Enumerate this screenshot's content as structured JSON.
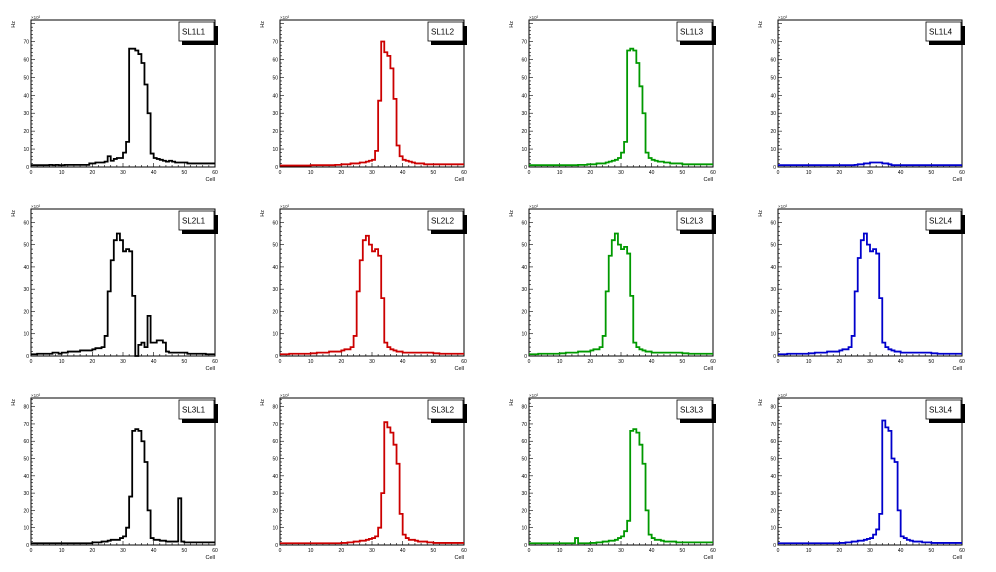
{
  "colors": {
    "SL1L1": "#000000",
    "SL1L2": "#cc0000",
    "SL1L3": "#009900",
    "SL1L4": "#0000cc"
  },
  "chart_data": [
    {
      "type": "bar",
      "title": "SL1L1",
      "xlabel": "Cell",
      "ylabel": "Hz",
      "y_multiplier": "×10³",
      "color": "#000000",
      "x_range": [
        0,
        60
      ],
      "ylim": [
        0,
        82
      ],
      "xticks": [
        0,
        10,
        20,
        30,
        40,
        50,
        60
      ],
      "yticks": [
        0,
        10,
        20,
        30,
        40,
        50,
        60,
        70
      ],
      "values": [
        1,
        1,
        1,
        1,
        1,
        1,
        1.2,
        1,
        1.2,
        1,
        1,
        1.2,
        1.2,
        1.2,
        1.2,
        1.2,
        1.2,
        1.2,
        1.2,
        2,
        2,
        2.5,
        2.5,
        2.5,
        3,
        6,
        3.5,
        4.5,
        5,
        5,
        8,
        14,
        66,
        66,
        65,
        63,
        58,
        46,
        30,
        7.5,
        5,
        4.5,
        4,
        3.5,
        3,
        3.5,
        3,
        2.5,
        2.5,
        2.5,
        2.5,
        2,
        2,
        2,
        2,
        2,
        2,
        2,
        2,
        2
      ]
    },
    {
      "type": "bar",
      "title": "SL1L2",
      "xlabel": "Cell",
      "ylabel": "Hz",
      "y_multiplier": "×10³",
      "color": "#cc0000",
      "x_range": [
        0,
        60
      ],
      "ylim": [
        0,
        82
      ],
      "xticks": [
        0,
        10,
        20,
        30,
        40,
        50,
        60
      ],
      "yticks": [
        0,
        10,
        20,
        30,
        40,
        50,
        60,
        70
      ],
      "values": [
        0.8,
        0.8,
        0.8,
        0.8,
        0.8,
        0.8,
        0.8,
        0.8,
        0.8,
        0.8,
        1,
        1,
        1,
        1,
        1,
        1,
        1,
        1,
        1.2,
        1.2,
        1.5,
        1.5,
        1.5,
        2,
        2,
        2,
        2.5,
        2.5,
        3,
        3.5,
        4,
        9,
        37,
        70,
        64,
        62,
        55,
        38,
        12,
        6,
        4,
        3.5,
        3,
        2.5,
        2,
        2,
        2,
        1.5,
        1.5,
        1.5,
        1.5,
        1.5,
        1.5,
        1.5,
        1.5,
        1.5,
        1.5,
        1.5,
        1.5,
        1.5
      ]
    },
    {
      "type": "bar",
      "title": "SL1L3",
      "xlabel": "Cell",
      "ylabel": "Hz",
      "y_multiplier": "×10³",
      "color": "#009900",
      "x_range": [
        0,
        60
      ],
      "ylim": [
        0,
        82
      ],
      "xticks": [
        0,
        10,
        20,
        30,
        40,
        50,
        60
      ],
      "yticks": [
        0,
        10,
        20,
        30,
        40,
        50,
        60,
        70
      ],
      "values": [
        1,
        1,
        1,
        1,
        1,
        1,
        1,
        1,
        1,
        1,
        1,
        1,
        1,
        1,
        1,
        1,
        1.2,
        1.2,
        1.2,
        1.5,
        1.5,
        1.5,
        2,
        2,
        2,
        2.5,
        3,
        3.5,
        4,
        5,
        8,
        14,
        65,
        66,
        65,
        58,
        45,
        30,
        8,
        5,
        4,
        3.5,
        3,
        3,
        2.5,
        2.5,
        2,
        2,
        2,
        2,
        1.5,
        1.5,
        1.5,
        1.5,
        1.5,
        1.5,
        1.5,
        1.5,
        1.5,
        1.5
      ]
    },
    {
      "type": "bar",
      "title": "SL1L4",
      "xlabel": "Cell",
      "ylabel": "Hz",
      "y_multiplier": "×10³",
      "color": "#0000cc",
      "x_range": [
        0,
        60
      ],
      "ylim": [
        0,
        82
      ],
      "xticks": [
        0,
        10,
        20,
        30,
        40,
        50,
        60
      ],
      "yticks": [
        0,
        10,
        20,
        30,
        40,
        50,
        60,
        70
      ],
      "values": [
        1,
        1,
        1,
        1,
        1,
        1,
        1,
        1,
        1,
        1,
        1,
        1,
        1,
        1,
        1,
        1,
        1,
        1,
        1,
        1,
        1,
        1,
        1,
        1,
        1,
        1.2,
        1.5,
        1.5,
        2,
        2,
        2.5,
        2.5,
        2.5,
        2.5,
        2,
        2,
        1.5,
        1,
        1,
        1,
        1,
        1,
        1,
        1,
        1,
        1,
        1,
        1,
        1,
        1,
        1,
        1,
        1,
        1,
        1,
        1,
        1,
        1,
        1,
        1
      ]
    },
    {
      "type": "bar",
      "title": "SL2L1",
      "xlabel": "Cell",
      "ylabel": "Hz",
      "y_multiplier": "×10³",
      "color": "#000000",
      "x_range": [
        0,
        60
      ],
      "ylim": [
        0,
        66
      ],
      "xticks": [
        0,
        10,
        20,
        30,
        40,
        50,
        60
      ],
      "yticks": [
        0,
        10,
        20,
        30,
        40,
        50,
        60
      ],
      "values": [
        0.8,
        0.8,
        1,
        1,
        1,
        1,
        1,
        1.5,
        1.5,
        1,
        1.5,
        1.5,
        2,
        2,
        2,
        2,
        2.5,
        2.5,
        2.5,
        2.5,
        3,
        3.5,
        3.5,
        4,
        9,
        29,
        43,
        52,
        55,
        52,
        47,
        48,
        47,
        27,
        0,
        5,
        6,
        4,
        18,
        6,
        6,
        7,
        7,
        6,
        2,
        1.5,
        1.5,
        1.5,
        1.5,
        1.5,
        1.5,
        1,
        1,
        1,
        1,
        1,
        1,
        0.8,
        0.8,
        0.8
      ]
    },
    {
      "type": "bar",
      "title": "SL2L2",
      "xlabel": "Cell",
      "ylabel": "Hz",
      "y_multiplier": "×10³",
      "color": "#cc0000",
      "x_range": [
        0,
        60
      ],
      "ylim": [
        0,
        66
      ],
      "xticks": [
        0,
        10,
        20,
        30,
        40,
        50,
        60
      ],
      "yticks": [
        0,
        10,
        20,
        30,
        40,
        50,
        60
      ],
      "values": [
        0.8,
        0.8,
        0.8,
        1,
        1,
        1,
        1,
        1,
        1,
        1,
        1.2,
        1.2,
        1.5,
        1.5,
        1.5,
        1.5,
        2,
        2,
        2,
        2,
        2.5,
        3,
        3,
        4,
        9,
        29,
        43,
        52,
        54,
        50,
        47,
        48,
        45,
        26,
        6,
        4,
        3,
        2.5,
        2,
        2,
        1.5,
        1.5,
        1.5,
        1.5,
        1.5,
        1.5,
        1.5,
        1.5,
        1.5,
        1.5,
        1.2,
        1.2,
        1,
        1,
        1,
        1,
        1,
        1,
        1,
        1
      ]
    },
    {
      "type": "bar",
      "title": "SL2L3",
      "xlabel": "Cell",
      "ylabel": "Hz",
      "y_multiplier": "×10³",
      "color": "#009900",
      "x_range": [
        0,
        60
      ],
      "ylim": [
        0,
        66
      ],
      "xticks": [
        0,
        10,
        20,
        30,
        40,
        50,
        60
      ],
      "yticks": [
        0,
        10,
        20,
        30,
        40,
        50,
        60
      ],
      "values": [
        0.8,
        0.8,
        0.8,
        1,
        1,
        1,
        1,
        1,
        1,
        1,
        1.2,
        1.2,
        1.5,
        1.5,
        1.5,
        1.5,
        2,
        2,
        2,
        2,
        2.5,
        3,
        3,
        4,
        9,
        29,
        45,
        52,
        55,
        50,
        48,
        49,
        46,
        27,
        6,
        4,
        3,
        2.5,
        2,
        2,
        1.5,
        1.5,
        1.5,
        1.5,
        1.5,
        1.5,
        1.5,
        1.5,
        1.5,
        1.5,
        1.2,
        1.2,
        1,
        1,
        1,
        1,
        1,
        1,
        1,
        1
      ]
    },
    {
      "type": "bar",
      "title": "SL2L4",
      "xlabel": "Cell",
      "ylabel": "Hz",
      "y_multiplier": "×10³",
      "color": "#0000cc",
      "x_range": [
        0,
        60
      ],
      "ylim": [
        0,
        66
      ],
      "xticks": [
        0,
        10,
        20,
        30,
        40,
        50,
        60
      ],
      "yticks": [
        0,
        10,
        20,
        30,
        40,
        50,
        60
      ],
      "values": [
        0.8,
        0.8,
        0.8,
        1,
        1,
        1,
        1,
        1,
        1,
        1,
        1.2,
        1.2,
        1.5,
        1.5,
        1.5,
        1.5,
        2,
        2,
        2,
        2,
        2.5,
        3,
        3,
        4,
        9,
        29,
        44,
        52,
        55,
        50,
        47,
        48,
        46,
        26,
        6,
        4,
        3,
        2.5,
        2,
        2,
        1.5,
        1.5,
        1.5,
        1.5,
        1.5,
        1.5,
        1.5,
        1.5,
        1.5,
        1.5,
        1.2,
        1.2,
        1,
        1,
        1,
        1,
        1,
        1,
        1,
        1
      ]
    },
    {
      "type": "bar",
      "title": "SL3L1",
      "xlabel": "Cell",
      "ylabel": "Hz",
      "y_multiplier": "×10³",
      "color": "#000000",
      "x_range": [
        0,
        60
      ],
      "ylim": [
        0,
        85
      ],
      "xticks": [
        0,
        10,
        20,
        30,
        40,
        50,
        60
      ],
      "yticks": [
        0,
        10,
        20,
        30,
        40,
        50,
        60,
        70,
        80
      ],
      "values": [
        1,
        1,
        1,
        1,
        1,
        1,
        1,
        1,
        1,
        1,
        1,
        1,
        1,
        1,
        1,
        1,
        1,
        1,
        1,
        1,
        1.5,
        1.5,
        1.5,
        2,
        2,
        2.5,
        3,
        3,
        3,
        4,
        5,
        10,
        28,
        66,
        67,
        66,
        60,
        48,
        20,
        4,
        3,
        3,
        2.5,
        2.5,
        2,
        2,
        2,
        2,
        27,
        2,
        1.5,
        1.5,
        1.5,
        1.5,
        1.5,
        1.5,
        1.5,
        1.5,
        1.5,
        1.5
      ]
    },
    {
      "type": "bar",
      "title": "SL3L2",
      "xlabel": "Cell",
      "ylabel": "Hz",
      "y_multiplier": "×10³",
      "color": "#cc0000",
      "x_range": [
        0,
        60
      ],
      "ylim": [
        0,
        85
      ],
      "xticks": [
        0,
        10,
        20,
        30,
        40,
        50,
        60
      ],
      "yticks": [
        0,
        10,
        20,
        30,
        40,
        50,
        60,
        70,
        80
      ],
      "values": [
        1,
        1,
        1,
        1,
        1,
        1,
        1,
        1,
        1,
        1,
        1,
        1,
        1,
        1,
        1,
        1,
        1,
        1,
        1,
        1,
        1.2,
        1.2,
        1.5,
        1.5,
        2,
        2,
        2.5,
        2.5,
        3,
        3.5,
        4,
        5,
        10,
        30,
        71,
        68,
        65,
        58,
        47,
        18,
        6,
        4,
        3,
        3,
        2.5,
        2,
        2,
        2,
        1.5,
        1.5,
        1.2,
        1.2,
        1.2,
        1.2,
        1.2,
        1.2,
        1.2,
        1.2,
        1.2,
        1.2
      ]
    },
    {
      "type": "bar",
      "title": "SL3L3",
      "xlabel": "Cell",
      "ylabel": "Hz",
      "y_multiplier": "×10³",
      "color": "#009900",
      "x_range": [
        0,
        60
      ],
      "ylim": [
        0,
        85
      ],
      "xticks": [
        0,
        10,
        20,
        30,
        40,
        50,
        60
      ],
      "yticks": [
        0,
        10,
        20,
        30,
        40,
        50,
        60,
        70,
        80
      ],
      "values": [
        1,
        1,
        1,
        1,
        1,
        1,
        1,
        1,
        1,
        1,
        1,
        1,
        1,
        1,
        1,
        4,
        1,
        1,
        1,
        1,
        1.2,
        1.2,
        1.5,
        1.5,
        2,
        2,
        2.5,
        2.5,
        3,
        4,
        5,
        8,
        14,
        66,
        67,
        65,
        58,
        47,
        20,
        6,
        4,
        3,
        3,
        2.5,
        2,
        2,
        2,
        2,
        1.5,
        1.5,
        1.5,
        1.5,
        1.5,
        1.5,
        1.5,
        1.5,
        1.5,
        1.5,
        1.5,
        1.5
      ]
    },
    {
      "type": "bar",
      "title": "SL3L4",
      "xlabel": "Cell",
      "ylabel": "Hz",
      "y_multiplier": "×10³",
      "color": "#0000cc",
      "x_range": [
        0,
        60
      ],
      "ylim": [
        0,
        85
      ],
      "xticks": [
        0,
        10,
        20,
        30,
        40,
        50,
        60
      ],
      "yticks": [
        0,
        10,
        20,
        30,
        40,
        50,
        60,
        70,
        80
      ],
      "values": [
        1,
        1,
        1,
        1,
        1,
        1,
        1,
        1,
        1,
        1,
        1,
        1,
        1,
        1,
        1,
        1,
        1,
        1,
        1,
        1,
        1.2,
        1.2,
        1.5,
        1.5,
        2,
        2,
        2.5,
        2.5,
        3,
        3.5,
        4,
        6,
        9,
        18,
        72,
        68,
        66,
        50,
        48,
        20,
        5,
        4,
        3,
        2.5,
        2,
        2,
        2,
        1.5,
        1.5,
        1.5,
        1.2,
        1.2,
        1.2,
        1.2,
        1.2,
        1.2,
        1.2,
        1.2,
        1.2,
        1.2
      ]
    }
  ]
}
